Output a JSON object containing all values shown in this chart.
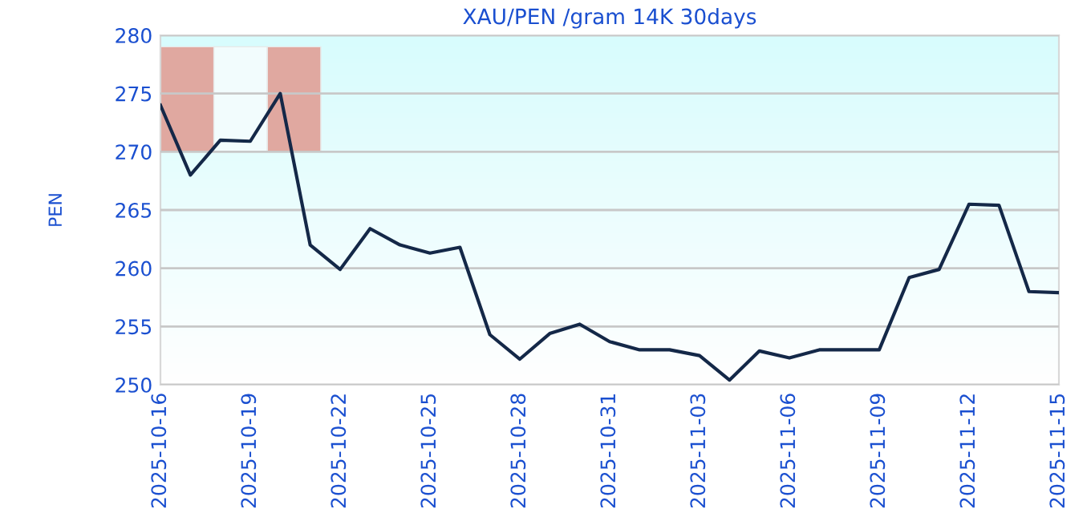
{
  "chart_data": {
    "type": "line",
    "title": "XAU/PEN /gram 14K 30days",
    "ylabel": "PEN",
    "x": [
      "2025-10-16",
      "2025-10-17",
      "2025-10-18",
      "2025-10-19",
      "2025-10-20",
      "2025-10-21",
      "2025-10-22",
      "2025-10-23",
      "2025-10-24",
      "2025-10-25",
      "2025-10-26",
      "2025-10-27",
      "2025-10-28",
      "2025-10-29",
      "2025-10-30",
      "2025-10-31",
      "2025-11-01",
      "2025-11-02",
      "2025-11-03",
      "2025-11-04",
      "2025-11-05",
      "2025-11-06",
      "2025-11-07",
      "2025-11-08",
      "2025-11-09",
      "2025-11-10",
      "2025-11-11",
      "2025-11-12",
      "2025-11-13",
      "2025-11-14",
      "2025-11-15"
    ],
    "series": [
      {
        "color": "#142848",
        "values": [
          274.0,
          268.0,
          271.0,
          270.9,
          275.0,
          262.0,
          259.9,
          263.4,
          262.0,
          261.3,
          261.8,
          254.3,
          252.2,
          254.4,
          255.2,
          253.7,
          253.0,
          253.0,
          252.5,
          250.4,
          252.9,
          252.3,
          253.0,
          253.0,
          253.0,
          259.2,
          259.9,
          265.5,
          265.4,
          258.0,
          257.9
        ]
      }
    ],
    "xlim": [
      "2025-10-16",
      "2025-11-15"
    ],
    "xticks": [
      "2025-10-16",
      "2025-10-19",
      "2025-10-22",
      "2025-10-25",
      "2025-10-28",
      "2025-10-31",
      "2025-11-03",
      "2025-11-06",
      "2025-11-09",
      "2025-11-12",
      "2025-11-15"
    ],
    "ylim": [
      250,
      280
    ],
    "yticks": [
      250,
      255,
      260,
      265,
      270,
      275,
      280
    ],
    "grid": "y",
    "legend": false,
    "marker": "none",
    "line_style": "solid"
  }
}
